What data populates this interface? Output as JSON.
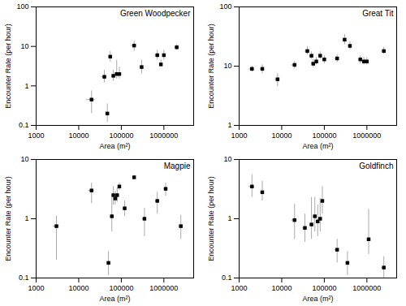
{
  "chart_data": [
    {
      "type": "scatter",
      "title": "Green Woodpecker",
      "xlabel": "Area (m²)",
      "ylabel": "Encounter Rate (per hour)",
      "log": true,
      "xlim": [
        1000,
        5000000
      ],
      "ylim": [
        0.1,
        100
      ],
      "xticks": [
        1000,
        10000,
        100000,
        1000000
      ],
      "yticks": [
        0.1,
        1,
        10,
        100
      ],
      "color": "black",
      "marker": "square",
      "x": [
        20000,
        40000,
        47000,
        55000,
        65000,
        78000,
        90000,
        200000,
        300000,
        700000,
        850000,
        1000000,
        2000000
      ],
      "values": [
        0.45,
        1.7,
        0.2,
        5.5,
        1.8,
        2.0,
        2.0,
        10.5,
        3.0,
        6.0,
        3.5,
        6.0,
        9.5
      ],
      "error_bars": {
        "color": "#aaaaaa",
        "x_lo": [
          5000,
          6000,
          5000,
          5000,
          5000,
          8000,
          8000,
          30000,
          30000,
          80000,
          60000,
          60000,
          200000
        ],
        "x_hi": [
          5000,
          6000,
          5000,
          5000,
          5000,
          8000,
          8000,
          30000,
          30000,
          80000,
          60000,
          60000,
          200000
        ],
        "y_lo": [
          0.25,
          0.5,
          0.08,
          1.5,
          0.5,
          0.5,
          0.5,
          3.0,
          1.0,
          1.5,
          0.5,
          1.5,
          1.5
        ],
        "y_hi": [
          0.3,
          0.8,
          0.15,
          2.0,
          0.7,
          2.5,
          1.0,
          3.0,
          1.5,
          2.0,
          1.0,
          2.0,
          1.5
        ]
      }
    },
    {
      "type": "scatter",
      "title": "Great Tit",
      "xlabel": "Area (m²)",
      "ylabel": "Encounter Rate (per hour)",
      "log": true,
      "xlim": [
        1000,
        5000000
      ],
      "ylim": [
        1,
        100
      ],
      "xticks": [
        1000,
        10000,
        100000,
        1000000
      ],
      "yticks": [
        1,
        10,
        100
      ],
      "color": "black",
      "marker": "square",
      "x": [
        2000,
        3500,
        8000,
        20000,
        40000,
        50000,
        55000,
        65000,
        80000,
        100000,
        200000,
        300000,
        400000,
        700000,
        850000,
        1000000,
        2500000
      ],
      "values": [
        9.0,
        9.0,
        6.0,
        10.5,
        18.0,
        15.0,
        11.0,
        12.0,
        15.0,
        13.0,
        13.5,
        28.0,
        22.0,
        13.0,
        12.0,
        12.0,
        18.0
      ],
      "error_bars": {
        "color": "#aaaaaa",
        "x_lo": [
          300,
          400,
          1000,
          3000,
          5000,
          5000,
          5000,
          5000,
          6000,
          10000,
          25000,
          30000,
          35000,
          70000,
          60000,
          60000,
          300000
        ],
        "x_hi": [
          300,
          400,
          1000,
          3000,
          5000,
          5000,
          5000,
          5000,
          6000,
          10000,
          25000,
          30000,
          35000,
          70000,
          60000,
          60000,
          300000
        ],
        "y_lo": [
          1.0,
          1.5,
          1.5,
          1.5,
          2.5,
          2.0,
          1.5,
          1.5,
          2.0,
          2.0,
          2.0,
          5.0,
          3.0,
          2.0,
          1.5,
          1.5,
          2.0
        ],
        "y_hi": [
          1.0,
          1.5,
          1.5,
          1.5,
          3.5,
          2.5,
          2.0,
          2.0,
          2.5,
          2.0,
          2.0,
          6.0,
          4.0,
          2.0,
          2.0,
          2.0,
          3.0
        ]
      }
    },
    {
      "type": "scatter",
      "title": "Magpie",
      "xlabel": "Area (m²)",
      "ylabel": "Encounter Rate (per hour)",
      "log": true,
      "xlim": [
        1000,
        5000000
      ],
      "ylim": [
        0.1,
        10
      ],
      "xticks": [
        1000,
        10000,
        100000,
        1000000
      ],
      "yticks": [
        0.1,
        1,
        10
      ],
      "color": "black",
      "marker": "square",
      "x": [
        3000,
        20000,
        50000,
        60000,
        65000,
        72000,
        80000,
        90000,
        120000,
        200000,
        350000,
        700000,
        1100000,
        2500000
      ],
      "values": [
        0.75,
        3.0,
        0.18,
        1.1,
        2.5,
        2.2,
        2.5,
        3.5,
        1.5,
        5.0,
        1.0,
        2.0,
        3.2,
        0.75
      ],
      "error_bars": {
        "color": "#aaaaaa",
        "x_lo": [
          500,
          3000,
          5000,
          5000,
          4000,
          4000,
          4000,
          5000,
          10000,
          15000,
          35000,
          70000,
          100000,
          300000
        ],
        "x_hi": [
          500,
          3000,
          5000,
          5000,
          4000,
          4000,
          4000,
          5000,
          10000,
          15000,
          35000,
          70000,
          100000,
          300000
        ],
        "y_lo": [
          0.55,
          1.2,
          0.07,
          0.5,
          0.8,
          0.5,
          0.6,
          0.5,
          0.4,
          0.4,
          0.5,
          0.8,
          0.8,
          0.3
        ],
        "y_hi": [
          0.35,
          1.0,
          0.1,
          1.2,
          1.0,
          0.7,
          0.8,
          0.5,
          0.5,
          0.4,
          0.5,
          0.8,
          0.8,
          0.4
        ]
      }
    },
    {
      "type": "scatter",
      "title": "Goldfinch",
      "xlabel": "Area (m²)",
      "ylabel": "Encounter Rate (per hour)",
      "log": true,
      "xlim": [
        1000,
        5000000
      ],
      "ylim": [
        0.1,
        10
      ],
      "xticks": [
        1000,
        10000,
        100000,
        1000000
      ],
      "yticks": [
        0.1,
        1,
        10
      ],
      "color": "black",
      "marker": "square",
      "x": [
        2000,
        3500,
        20000,
        35000,
        50000,
        60000,
        70000,
        80000,
        90000,
        200000,
        350000,
        1100000,
        2500000
      ],
      "values": [
        3.5,
        2.8,
        0.95,
        0.7,
        0.8,
        1.1,
        0.9,
        1.0,
        2.0,
        0.3,
        0.18,
        0.45,
        0.15
      ],
      "error_bars": {
        "color": "#aaaaaa",
        "x_lo": [
          300,
          400,
          3000,
          4000,
          5000,
          5000,
          5000,
          5000,
          5000,
          25000,
          35000,
          100000,
          300000
        ],
        "x_hi": [
          300,
          400,
          3000,
          4000,
          5000,
          5000,
          5000,
          5000,
          5000,
          25000,
          35000,
          100000,
          300000
        ],
        "y_lo": [
          1.2,
          0.8,
          0.5,
          0.3,
          0.35,
          0.5,
          0.4,
          0.4,
          0.8,
          0.12,
          0.07,
          0.2,
          0.05
        ],
        "y_hi": [
          2.0,
          1.5,
          0.8,
          0.5,
          1.5,
          1.2,
          0.8,
          1.2,
          1.5,
          0.15,
          0.1,
          1.0,
          0.08
        ]
      }
    }
  ]
}
